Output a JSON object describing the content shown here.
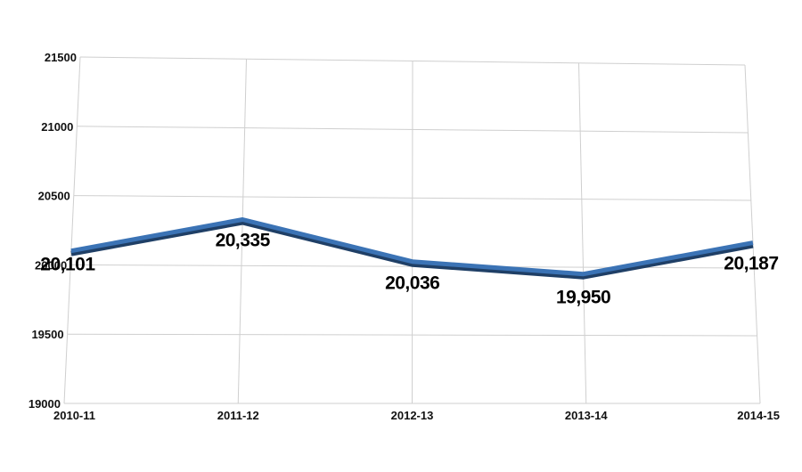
{
  "chart_data": {
    "type": "line",
    "title": "",
    "xlabel": "",
    "ylabel": "",
    "categories": [
      "2010-11",
      "2011-12",
      "2012-13",
      "2013-14",
      "2014-15"
    ],
    "series": [
      {
        "values": [
          20101,
          20335,
          20036,
          19950,
          20187
        ]
      }
    ],
    "data_labels": [
      "20,101",
      "20,335",
      "20,036",
      "19,950",
      "20,187"
    ],
    "y_ticks": [
      "19000",
      "19500",
      "20000",
      "20500",
      "21000",
      "21500"
    ],
    "ylim": [
      19000,
      21500
    ],
    "grid": true,
    "legend": "none",
    "colors": {
      "line": "#3b73b5",
      "line_shadow": "#1f3f66",
      "grid": "#cfcfcf",
      "text": "#111111"
    }
  }
}
